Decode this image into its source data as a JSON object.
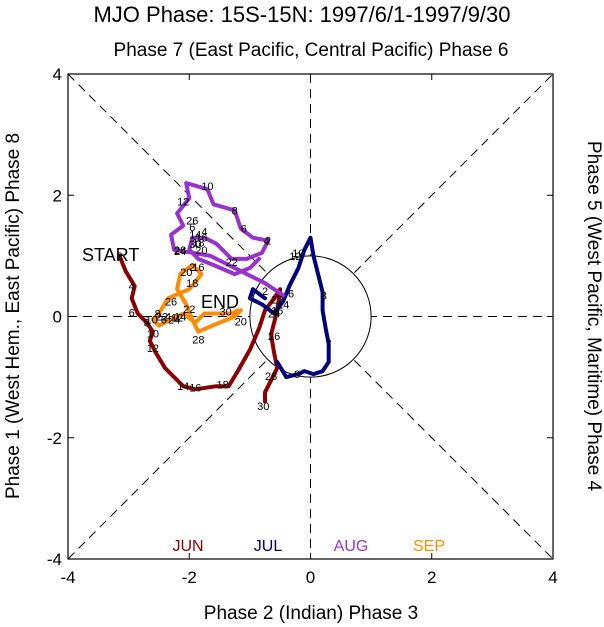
{
  "chart_data": {
    "type": "line",
    "title": "MJO Phase: 15S-15N: 1997/6/1-1997/9/30",
    "top_label": "Phase 7 (East Pacific, Central Pacific) Phase 6",
    "bottom_label": "Phase 2 (Indian) Phase 3",
    "left_label": "Phase 1 (West Hem., East Pacific) Phase 8",
    "right_label": "Phase 5 (West Pacific, Maritime) Phase 4",
    "xlim": [
      -4,
      4
    ],
    "ylim": [
      -4,
      4
    ],
    "xticks": [
      -4,
      -2,
      0,
      2,
      4
    ],
    "yticks": [
      -4,
      -2,
      0,
      2,
      4
    ],
    "start_label": "START",
    "end_label": "END",
    "unit_circle_radius": 1,
    "series": [
      {
        "name": "JUN",
        "color": "#8b0000",
        "points": [
          [
            -3.15,
            1.0
          ],
          [
            -3.05,
            0.75
          ],
          [
            -2.9,
            0.5
          ],
          [
            -2.95,
            0.3
          ],
          [
            -2.85,
            0.05
          ],
          [
            -2.7,
            -0.1
          ],
          [
            -2.6,
            -0.25
          ],
          [
            -2.65,
            -0.4
          ],
          [
            -2.55,
            -0.6
          ],
          [
            -2.4,
            -0.85
          ],
          [
            -2.1,
            -1.15
          ],
          [
            -1.9,
            -1.2
          ],
          [
            -1.55,
            -1.15
          ],
          [
            -1.35,
            -1.15
          ],
          [
            -1.2,
            -0.9
          ],
          [
            -1.0,
            -0.55
          ],
          [
            -0.85,
            -0.2
          ],
          [
            -0.75,
            0.1
          ],
          [
            -0.6,
            0.3
          ],
          [
            -0.5,
            0.45
          ],
          [
            -0.55,
            0.1
          ],
          [
            -0.65,
            -0.3
          ],
          [
            -0.6,
            -0.6
          ],
          [
            -0.55,
            -0.85
          ],
          [
            -0.65,
            -1.05
          ],
          [
            -0.75,
            -1.25
          ],
          [
            -0.75,
            -1.4
          ]
        ],
        "labels": [
          {
            "text": "2",
            "at": [
              -3.15,
              1.0
            ]
          },
          {
            "text": "4",
            "at": [
              -2.95,
              0.5
            ]
          },
          {
            "text": "6",
            "at": [
              -2.95,
              0.07
            ]
          },
          {
            "text": "8",
            "at": [
              -2.7,
              -0.1
            ]
          },
          {
            "text": "10",
            "at": [
              -2.6,
              -0.28
            ]
          },
          {
            "text": "12",
            "at": [
              -2.6,
              -0.52
            ]
          },
          {
            "text": "14",
            "at": [
              -2.1,
              -1.15
            ]
          },
          {
            "text": "16",
            "at": [
              -1.9,
              -1.17
            ]
          },
          {
            "text": "18",
            "at": [
              -1.45,
              -1.12
            ]
          },
          {
            "text": "20",
            "at": [
              -1.15,
              -0.08
            ]
          },
          {
            "text": "22",
            "at": [
              -0.55,
              0.28
            ]
          },
          {
            "text": "24",
            "at": [
              -0.6,
              0.05
            ]
          },
          {
            "text": "26",
            "at": [
              -0.6,
              -0.32
            ]
          },
          {
            "text": "28",
            "at": [
              -0.65,
              -0.98
            ]
          },
          {
            "text": "30",
            "at": [
              -0.78,
              -1.48
            ]
          }
        ]
      },
      {
        "name": "JUL",
        "color": "#00007f",
        "points": [
          [
            -0.75,
            0.3
          ],
          [
            -0.95,
            0.45
          ],
          [
            -1.0,
            0.3
          ],
          [
            -0.8,
            0.2
          ],
          [
            -0.6,
            0.05
          ],
          [
            -0.45,
            0.25
          ],
          [
            -0.35,
            0.5
          ],
          [
            -0.2,
            0.8
          ],
          [
            -0.1,
            1.1
          ],
          [
            0.0,
            1.3
          ],
          [
            0.05,
            1.0
          ],
          [
            0.15,
            0.6
          ],
          [
            0.2,
            0.4
          ],
          [
            0.2,
            0.1
          ],
          [
            0.25,
            -0.2
          ],
          [
            0.3,
            -0.45
          ],
          [
            0.3,
            -0.75
          ],
          [
            0.2,
            -0.9
          ],
          [
            0.05,
            -0.95
          ],
          [
            -0.1,
            -0.9
          ],
          [
            -0.2,
            -0.95
          ],
          [
            -0.4,
            -1.0
          ],
          [
            -0.55,
            -0.75
          ]
        ],
        "labels": [
          {
            "text": "2",
            "at": [
              -0.75,
              0.42
            ]
          },
          {
            "text": "4",
            "at": [
              -0.58,
              0.08
            ]
          },
          {
            "text": "6",
            "at": [
              -0.32,
              0.38
            ]
          },
          {
            "text": "8",
            "at": [
              0.22,
              0.35
            ]
          },
          {
            "text": "10",
            "at": [
              -0.2,
              1.05
            ]
          },
          {
            "text": "12",
            "at": [
              -0.25,
              1.0
            ]
          },
          {
            "text": "14",
            "at": [
              -0.45,
              0.2
            ]
          },
          {
            "text": "16",
            "at": [
              -0.55,
              0.1
            ]
          },
          {
            "text": "7",
            "at": [
              0.3,
              -0.45
            ]
          },
          {
            "text": "9",
            "at": [
              -0.22,
              -0.95
            ]
          }
        ]
      },
      {
        "name": "AUG",
        "color": "#9932cc",
        "points": [
          [
            -0.45,
            0.35
          ],
          [
            -0.75,
            0.55
          ],
          [
            -1.05,
            0.7
          ],
          [
            -1.35,
            0.85
          ],
          [
            -1.65,
            1.0
          ],
          [
            -1.95,
            1.05
          ],
          [
            -2.25,
            1.1
          ],
          [
            -2.3,
            1.35
          ],
          [
            -2.1,
            1.5
          ],
          [
            -2.2,
            1.7
          ],
          [
            -2.0,
            1.95
          ],
          [
            -2.05,
            2.2
          ],
          [
            -1.7,
            2.1
          ],
          [
            -1.6,
            1.85
          ],
          [
            -1.25,
            1.75
          ],
          [
            -1.15,
            1.45
          ],
          [
            -0.95,
            1.3
          ],
          [
            -0.7,
            1.25
          ],
          [
            -0.8,
            1.05
          ],
          [
            -1.05,
            0.95
          ],
          [
            -1.3,
            0.95
          ],
          [
            -1.55,
            1.2
          ],
          [
            -1.75,
            1.3
          ],
          [
            -1.95,
            1.3
          ],
          [
            -2.0,
            1.1
          ],
          [
            -1.85,
            0.95
          ],
          [
            -1.6,
            0.85
          ],
          [
            -1.25,
            0.7
          ],
          [
            -1.0,
            0.8
          ],
          [
            -0.85,
            0.95
          ]
        ],
        "labels": [
          {
            "text": "2",
            "at": [
              -0.7,
              1.25
            ]
          },
          {
            "text": "4",
            "at": [
              -0.72,
              1.25
            ]
          },
          {
            "text": "6",
            "at": [
              -1.1,
              1.45
            ]
          },
          {
            "text": "8",
            "at": [
              -1.25,
              1.75
            ]
          },
          {
            "text": "10",
            "at": [
              -1.7,
              2.15
            ]
          },
          {
            "text": "12",
            "at": [
              -2.1,
              1.9
            ]
          },
          {
            "text": "14",
            "at": [
              -1.9,
              1.35
            ]
          },
          {
            "text": "16",
            "at": [
              -1.8,
              1.3
            ]
          },
          {
            "text": "18",
            "at": [
              -1.85,
              1.22
            ]
          },
          {
            "text": "20",
            "at": [
              -1.8,
              1.1
            ]
          },
          {
            "text": "22",
            "at": [
              -1.3,
              0.9
            ]
          },
          {
            "text": "24",
            "at": [
              -2.15,
              1.08
            ]
          },
          {
            "text": "26",
            "at": [
              -1.95,
              1.58
            ]
          },
          {
            "text": "28",
            "at": [
              -2.15,
              1.1
            ]
          },
          {
            "text": "30",
            "at": [
              -1.9,
              1.2
            ]
          },
          {
            "text": "6",
            "at": [
              -1.95,
              1.48
            ]
          },
          {
            "text": "4",
            "at": [
              -1.75,
              1.4
            ]
          }
        ]
      },
      {
        "name": "SEP",
        "color": "#ff8c00",
        "points": [
          [
            -1.15,
            0.1
          ],
          [
            -1.25,
            0.0
          ],
          [
            -1.5,
            -0.1
          ],
          [
            -1.85,
            -0.25
          ],
          [
            -1.95,
            -0.05
          ],
          [
            -2.05,
            0.2
          ],
          [
            -2.2,
            0.45
          ],
          [
            -2.15,
            0.7
          ],
          [
            -1.95,
            0.85
          ],
          [
            -1.8,
            0.7
          ],
          [
            -2.0,
            0.45
          ],
          [
            -2.35,
            0.3
          ],
          [
            -2.5,
            0.05
          ],
          [
            -2.6,
            -0.05
          ],
          [
            -2.5,
            -0.15
          ],
          [
            -2.3,
            -0.05
          ],
          [
            -2.1,
            0.05
          ],
          [
            -1.9,
            -0.1
          ],
          [
            -1.75,
            0.05
          ],
          [
            -1.5,
            0.05
          ],
          [
            -1.3,
            0.05
          ],
          [
            -1.2,
            0.1
          ]
        ],
        "labels": [
          {
            "text": "2",
            "at": [
              -1.95,
              0.82
            ]
          },
          {
            "text": "4",
            "at": [
              -2.35,
              0.0
            ]
          },
          {
            "text": "6",
            "at": [
              -2.42,
              -0.05
            ]
          },
          {
            "text": "8",
            "at": [
              -2.52,
              0.05
            ]
          },
          {
            "text": "10",
            "at": [
              -2.62,
              -0.05
            ]
          },
          {
            "text": "12",
            "at": [
              -2.2,
              -0.02
            ]
          },
          {
            "text": "14",
            "at": [
              -2.15,
              0.0
            ]
          },
          {
            "text": "16",
            "at": [
              -1.85,
              0.82
            ]
          },
          {
            "text": "18",
            "at": [
              -1.95,
              0.55
            ]
          },
          {
            "text": "20",
            "at": [
              -2.05,
              0.73
            ]
          },
          {
            "text": "22",
            "at": [
              -2.45,
              0.0
            ]
          },
          {
            "text": "24",
            "at": [
              -2.25,
              -0.05
            ]
          },
          {
            "text": "26",
            "at": [
              -2.3,
              0.25
            ]
          },
          {
            "text": "28",
            "at": [
              -1.85,
              -0.38
            ]
          },
          {
            "text": "30",
            "at": [
              -1.4,
              0.08
            ]
          },
          {
            "text": "22",
            "at": [
              -2.0,
              0.12
            ]
          }
        ]
      }
    ],
    "legend": [
      {
        "text": "JUN",
        "color": "#8b0000"
      },
      {
        "text": "JUL",
        "color": "#00007f"
      },
      {
        "text": "AUG",
        "color": "#9932cc"
      },
      {
        "text": "SEP",
        "color": "#ff8c00"
      }
    ]
  }
}
